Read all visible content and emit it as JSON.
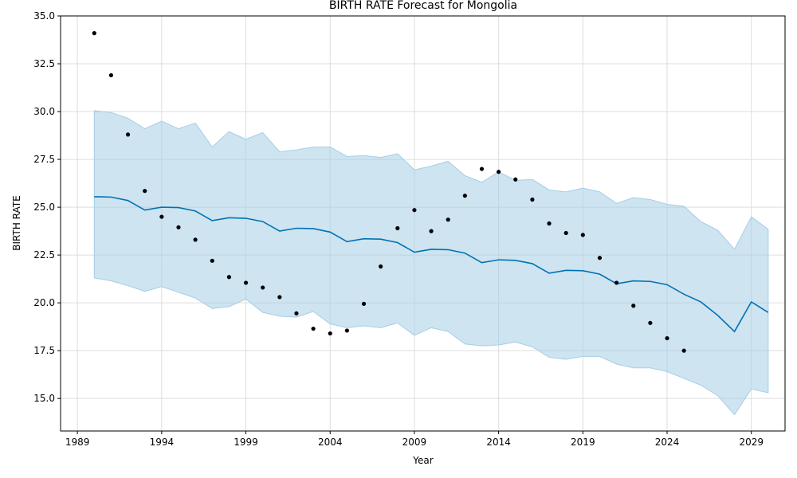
{
  "chart_data": {
    "type": "line",
    "title": "BIRTH RATE Forecast for Mongolia",
    "xlabel": "Year",
    "ylabel": "BIRTH RATE",
    "xlim": [
      1988.0,
      2031.0
    ],
    "ylim": [
      13.3,
      35.0
    ],
    "x_ticks": [
      1989,
      1994,
      1999,
      2004,
      2009,
      2014,
      2019,
      2024,
      2029
    ],
    "y_ticks": [
      15.0,
      17.5,
      20.0,
      22.5,
      25.0,
      27.5,
      30.0,
      32.5,
      35.0
    ],
    "y_tick_labels": [
      "15.0",
      "17.5",
      "20.0",
      "22.5",
      "25.0",
      "27.5",
      "30.0",
      "32.5",
      "35.0"
    ],
    "grid": true,
    "colors": {
      "forecast": "#0072b2",
      "interval": "#a6cde6",
      "actual": "#000000"
    },
    "series": [
      {
        "kind": "actual",
        "style": "scatter",
        "x": [
          1990,
          1991,
          1992,
          1993,
          1994,
          1995,
          1996,
          1997,
          1998,
          1999,
          2000,
          2001,
          2002,
          2003,
          2004,
          2005,
          2006,
          2007,
          2008,
          2009,
          2010,
          2011,
          2012,
          2013,
          2014,
          2015,
          2016,
          2017,
          2018,
          2019,
          2020,
          2021,
          2022,
          2023,
          2024,
          2025
        ],
        "y": [
          34.1,
          31.9,
          28.8,
          25.85,
          24.5,
          23.95,
          23.3,
          22.2,
          21.35,
          21.05,
          20.8,
          20.3,
          19.45,
          18.65,
          18.4,
          18.55,
          19.95,
          21.9,
          23.9,
          24.85,
          23.75,
          24.35,
          25.6,
          27.0,
          26.85,
          26.45,
          25.4,
          24.15,
          23.65,
          23.55,
          22.35,
          21.05,
          19.85,
          18.95,
          18.15,
          17.5
        ]
      },
      {
        "kind": "forecast",
        "style": "line",
        "x": [
          1990,
          1991,
          1992,
          1993,
          1994,
          1995,
          1996,
          1997,
          1998,
          1999,
          2000,
          2001,
          2002,
          2003,
          2004,
          2005,
          2006,
          2007,
          2008,
          2009,
          2010,
          2011,
          2012,
          2013,
          2014,
          2015,
          2016,
          2017,
          2018,
          2019,
          2020,
          2021,
          2022,
          2023,
          2024,
          2025,
          2026,
          2027,
          2028,
          2029,
          2030
        ],
        "y": [
          25.55,
          25.53,
          25.35,
          24.85,
          25.0,
          24.98,
          24.8,
          24.3,
          24.45,
          24.42,
          24.25,
          23.75,
          23.9,
          23.88,
          23.7,
          23.2,
          23.35,
          23.33,
          23.15,
          22.65,
          22.8,
          22.78,
          22.6,
          22.1,
          22.25,
          22.22,
          22.05,
          21.55,
          21.7,
          21.68,
          21.5,
          21.0,
          21.15,
          21.12,
          20.95,
          20.45,
          20.05,
          19.35,
          18.5,
          20.05,
          19.5
        ]
      },
      {
        "kind": "interval_upper",
        "style": "band",
        "x": [
          1990,
          1991,
          1992,
          1993,
          1994,
          1995,
          1996,
          1997,
          1998,
          1999,
          2000,
          2001,
          2002,
          2003,
          2004,
          2005,
          2006,
          2007,
          2008,
          2009,
          2010,
          2011,
          2012,
          2013,
          2014,
          2015,
          2016,
          2017,
          2018,
          2019,
          2020,
          2021,
          2022,
          2023,
          2024,
          2025,
          2026,
          2027,
          2028,
          2029,
          2030
        ],
        "y": [
          30.05,
          29.95,
          29.65,
          29.1,
          29.5,
          29.1,
          29.4,
          28.15,
          28.95,
          28.55,
          28.9,
          27.9,
          28.0,
          28.15,
          28.15,
          27.65,
          27.7,
          27.6,
          27.8,
          26.95,
          27.15,
          27.4,
          26.65,
          26.3,
          26.85,
          26.4,
          26.45,
          25.9,
          25.8,
          26.0,
          25.8,
          25.2,
          25.5,
          25.4,
          25.15,
          25.05,
          24.25,
          23.8,
          22.8,
          24.5,
          23.85
        ]
      },
      {
        "kind": "interval_lower",
        "style": "band",
        "x": [
          1990,
          1991,
          1992,
          1993,
          1994,
          1995,
          1996,
          1997,
          1998,
          1999,
          2000,
          2001,
          2002,
          2003,
          2004,
          2005,
          2006,
          2007,
          2008,
          2009,
          2010,
          2011,
          2012,
          2013,
          2014,
          2015,
          2016,
          2017,
          2018,
          2019,
          2020,
          2021,
          2022,
          2023,
          2024,
          2025,
          2026,
          2027,
          2028,
          2029,
          2030
        ],
        "y": [
          21.3,
          21.15,
          20.9,
          20.6,
          20.85,
          20.55,
          20.25,
          19.7,
          19.8,
          20.2,
          19.5,
          19.3,
          19.25,
          19.55,
          18.9,
          18.7,
          18.8,
          18.7,
          18.95,
          18.3,
          18.7,
          18.5,
          17.85,
          17.75,
          17.8,
          17.95,
          17.7,
          17.15,
          17.05,
          17.2,
          17.2,
          16.8,
          16.6,
          16.6,
          16.4,
          16.05,
          15.7,
          15.15,
          14.15,
          15.5,
          15.3
        ]
      }
    ]
  }
}
